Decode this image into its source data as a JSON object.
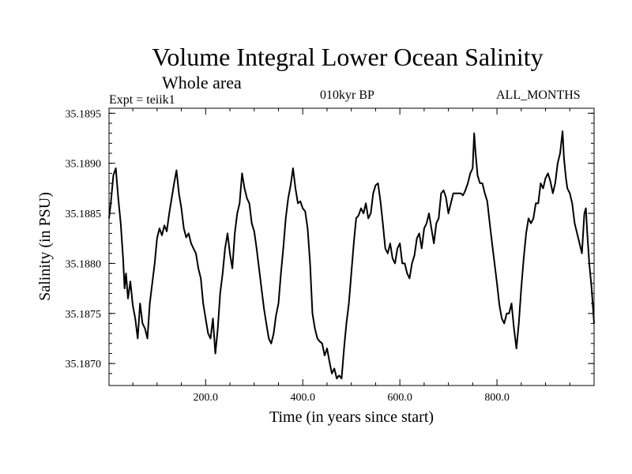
{
  "chart_data": {
    "type": "line",
    "title": "Volume Integral Lower Ocean Salinity",
    "subtitle": "Whole area",
    "annotations": {
      "left": "Expt = teiik1",
      "center": "010kyr BP",
      "right": "ALL_MONTHS"
    },
    "xlabel": "Time (in years since start)",
    "ylabel": "Salinity (in PSU)",
    "xlim": [
      1,
      1000
    ],
    "ylim": [
      35.18678,
      35.18955
    ],
    "xticks": [
      200,
      400,
      600,
      800
    ],
    "xtick_labels": [
      "200.0",
      "400.0",
      "600.0",
      "800.0"
    ],
    "yticks": [
      35.187,
      35.1875,
      35.188,
      35.1885,
      35.189,
      35.1895
    ],
    "ytick_labels": [
      "35.1870",
      "35.1875",
      "35.1880",
      "35.1885",
      "35.1890",
      "35.1895"
    ],
    "grid": false,
    "series": [
      {
        "values": [
          [
            1,
            35.18845
          ],
          [
            5,
            35.18862
          ],
          [
            10,
            35.18888
          ],
          [
            15,
            35.18895
          ],
          [
            20,
            35.18865
          ],
          [
            25,
            35.1884
          ],
          [
            30,
            35.18805
          ],
          [
            33,
            35.18775
          ],
          [
            36,
            35.1879
          ],
          [
            40,
            35.18765
          ],
          [
            45,
            35.18782
          ],
          [
            50,
            35.18758
          ],
          [
            55,
            35.18745
          ],
          [
            60,
            35.18725
          ],
          [
            65,
            35.1876
          ],
          [
            70,
            35.1874
          ],
          [
            75,
            35.18735
          ],
          [
            80,
            35.18725
          ],
          [
            85,
            35.1876
          ],
          [
            90,
            35.1878
          ],
          [
            95,
            35.188
          ],
          [
            100,
            35.18825
          ],
          [
            105,
            35.18835
          ],
          [
            110,
            35.18828
          ],
          [
            115,
            35.18838
          ],
          [
            120,
            35.18832
          ],
          [
            125,
            35.1885
          ],
          [
            130,
            35.18865
          ],
          [
            135,
            35.1888
          ],
          [
            140,
            35.18893
          ],
          [
            145,
            35.1887
          ],
          [
            150,
            35.18855
          ],
          [
            155,
            35.18835
          ],
          [
            160,
            35.18826
          ],
          [
            165,
            35.1883
          ],
          [
            170,
            35.1882
          ],
          [
            175,
            35.18815
          ],
          [
            180,
            35.1881
          ],
          [
            185,
            35.18795
          ],
          [
            190,
            35.18785
          ],
          [
            195,
            35.1876
          ],
          [
            200,
            35.18745
          ],
          [
            205,
            35.1873
          ],
          [
            210,
            35.18725
          ],
          [
            215,
            35.18745
          ],
          [
            220,
            35.1871
          ],
          [
            225,
            35.18735
          ],
          [
            230,
            35.1877
          ],
          [
            235,
            35.1879
          ],
          [
            240,
            35.18815
          ],
          [
            245,
            35.1883
          ],
          [
            250,
            35.1881
          ],
          [
            255,
            35.18795
          ],
          [
            260,
            35.1883
          ],
          [
            265,
            35.1885
          ],
          [
            270,
            35.1886
          ],
          [
            275,
            35.1889
          ],
          [
            280,
            35.18875
          ],
          [
            285,
            35.18865
          ],
          [
            290,
            35.1886
          ],
          [
            295,
            35.1884
          ],
          [
            300,
            35.18832
          ],
          [
            305,
            35.18815
          ],
          [
            310,
            35.18795
          ],
          [
            315,
            35.18775
          ],
          [
            320,
            35.18755
          ],
          [
            325,
            35.1874
          ],
          [
            330,
            35.18725
          ],
          [
            335,
            35.1872
          ],
          [
            340,
            35.1873
          ],
          [
            345,
            35.18748
          ],
          [
            350,
            35.1876
          ],
          [
            355,
            35.1879
          ],
          [
            360,
            35.18815
          ],
          [
            365,
            35.18845
          ],
          [
            370,
            35.18865
          ],
          [
            375,
            35.18878
          ],
          [
            380,
            35.18895
          ],
          [
            385,
            35.18875
          ],
          [
            390,
            35.1886
          ],
          [
            395,
            35.18862
          ],
          [
            400,
            35.18855
          ],
          [
            405,
            35.18852
          ],
          [
            410,
            35.18835
          ],
          [
            415,
            35.188
          ],
          [
            420,
            35.1875
          ],
          [
            425,
            35.18735
          ],
          [
            430,
            35.18725
          ],
          [
            435,
            35.18722
          ],
          [
            440,
            35.1872
          ],
          [
            445,
            35.18708
          ],
          [
            450,
            35.18715
          ],
          [
            455,
            35.18702
          ],
          [
            460,
            35.1869
          ],
          [
            465,
            35.18695
          ],
          [
            470,
            35.18685
          ],
          [
            475,
            35.18688
          ],
          [
            480,
            35.18685
          ],
          [
            485,
            35.18715
          ],
          [
            490,
            35.1874
          ],
          [
            495,
            35.1876
          ],
          [
            500,
            35.1879
          ],
          [
            505,
            35.1882
          ],
          [
            510,
            35.18845
          ],
          [
            515,
            35.18848
          ],
          [
            520,
            35.18855
          ],
          [
            525,
            35.1885
          ],
          [
            530,
            35.1886
          ],
          [
            535,
            35.18845
          ],
          [
            540,
            35.1885
          ],
          [
            545,
            35.1887
          ],
          [
            550,
            35.18878
          ],
          [
            555,
            35.1888
          ],
          [
            560,
            35.18862
          ],
          [
            565,
            35.1884
          ],
          [
            570,
            35.18815
          ],
          [
            575,
            35.1881
          ],
          [
            580,
            35.1882
          ],
          [
            585,
            35.18805
          ],
          [
            590,
            35.188
          ],
          [
            595,
            35.18815
          ],
          [
            600,
            35.1882
          ],
          [
            605,
            35.188
          ],
          [
            610,
            35.188
          ],
          [
            615,
            35.1879
          ],
          [
            620,
            35.18785
          ],
          [
            625,
            35.188
          ],
          [
            630,
            35.18808
          ],
          [
            635,
            35.18825
          ],
          [
            640,
            35.1883
          ],
          [
            645,
            35.18815
          ],
          [
            650,
            35.18835
          ],
          [
            655,
            35.1884
          ],
          [
            660,
            35.1885
          ],
          [
            665,
            35.18835
          ],
          [
            670,
            35.1882
          ],
          [
            675,
            35.1884
          ],
          [
            680,
            35.18845
          ],
          [
            685,
            35.1887
          ],
          [
            690,
            35.18873
          ],
          [
            695,
            35.18866
          ],
          [
            700,
            35.1885
          ],
          [
            705,
            35.1886
          ],
          [
            710,
            35.1887
          ],
          [
            715,
            35.1887
          ],
          [
            720,
            35.1887
          ],
          [
            725,
            35.1887
          ],
          [
            730,
            35.18868
          ],
          [
            735,
            35.18873
          ],
          [
            740,
            35.1888
          ],
          [
            745,
            35.1889
          ],
          [
            750,
            35.18895
          ],
          [
            753,
            35.1893
          ],
          [
            756,
            35.1891
          ],
          [
            760,
            35.18888
          ],
          [
            765,
            35.1888
          ],
          [
            770,
            35.1888
          ],
          [
            775,
            35.1887
          ],
          [
            780,
            35.18862
          ],
          [
            785,
            35.1884
          ],
          [
            790,
            35.1882
          ],
          [
            795,
            35.188
          ],
          [
            800,
            35.1878
          ],
          [
            805,
            35.18758
          ],
          [
            810,
            35.18745
          ],
          [
            815,
            35.1874
          ],
          [
            820,
            35.1875
          ],
          [
            825,
            35.1875
          ],
          [
            830,
            35.1876
          ],
          [
            835,
            35.18735
          ],
          [
            840,
            35.18715
          ],
          [
            845,
            35.1874
          ],
          [
            850,
            35.18775
          ],
          [
            855,
            35.18805
          ],
          [
            860,
            35.1883
          ],
          [
            865,
            35.18845
          ],
          [
            870,
            35.1884
          ],
          [
            875,
            35.18845
          ],
          [
            880,
            35.1886
          ],
          [
            885,
            35.1886
          ],
          [
            890,
            35.1888
          ],
          [
            895,
            35.18875
          ],
          [
            900,
            35.18885
          ],
          [
            905,
            35.1889
          ],
          [
            910,
            35.18882
          ],
          [
            915,
            35.1887
          ],
          [
            920,
            35.1888
          ],
          [
            925,
            35.189
          ],
          [
            930,
            35.1891
          ],
          [
            935,
            35.18932
          ],
          [
            938,
            35.18905
          ],
          [
            942,
            35.18885
          ],
          [
            945,
            35.18875
          ],
          [
            950,
            35.1887
          ],
          [
            955,
            35.1886
          ],
          [
            960,
            35.1884
          ],
          [
            965,
            35.1883
          ],
          [
            970,
            35.1882
          ],
          [
            975,
            35.1881
          ],
          [
            980,
            35.1885
          ],
          [
            983,
            35.18855
          ],
          [
            986,
            35.1883
          ],
          [
            990,
            35.188
          ],
          [
            995,
            35.18775
          ],
          [
            1000,
            35.1874
          ]
        ]
      }
    ]
  }
}
